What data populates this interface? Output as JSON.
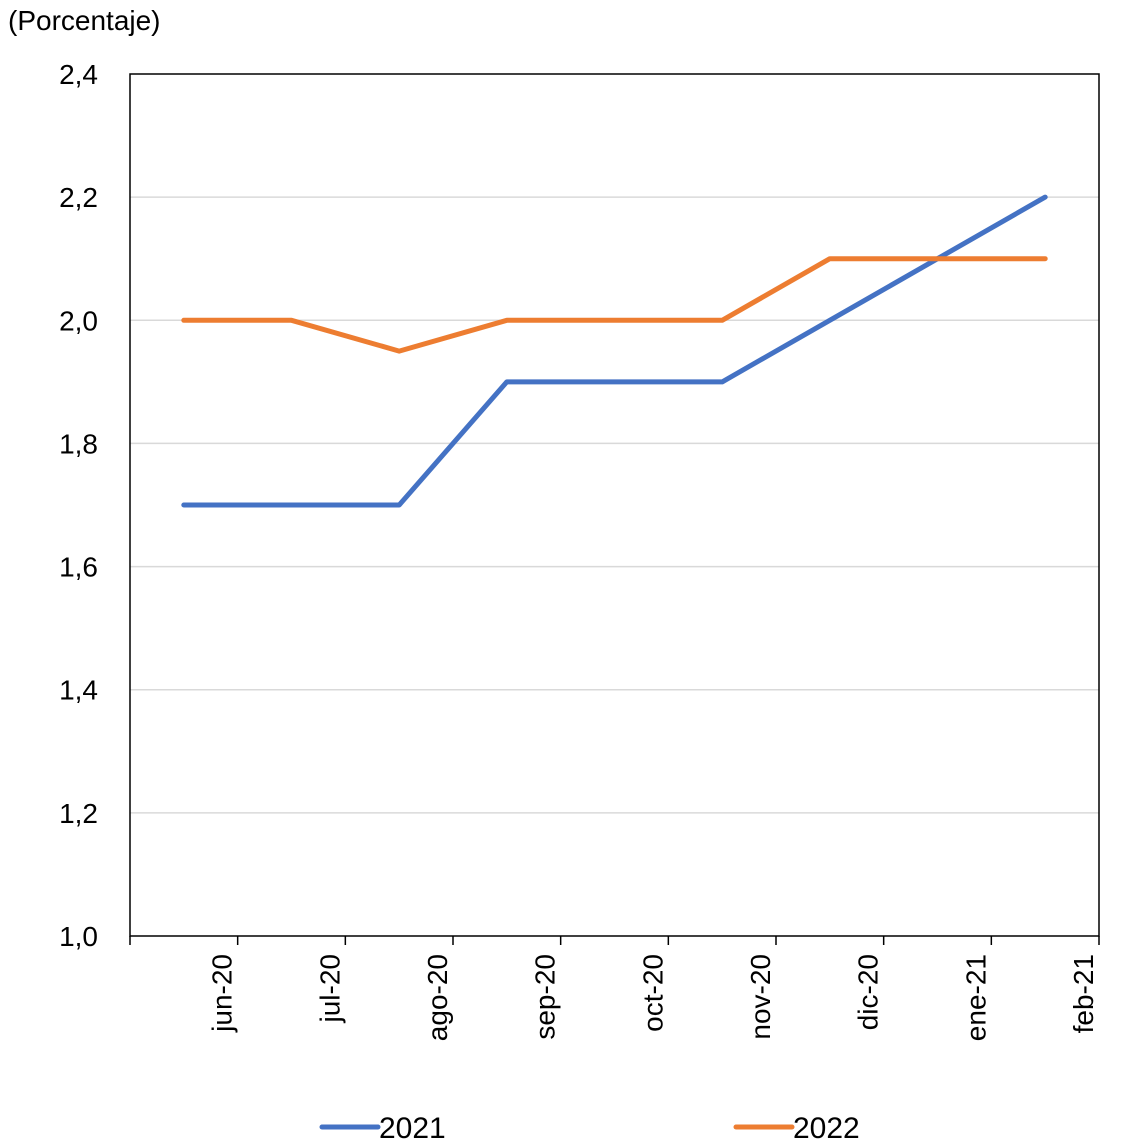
{
  "chart_data": {
    "type": "line",
    "unit_label": "(Porcentaje)",
    "categories": [
      "jun-20",
      "jul-20",
      "ago-20",
      "sep-20",
      "oct-20",
      "nov-20",
      "dic-20",
      "ene-21",
      "feb-21"
    ],
    "ylim": [
      1.0,
      2.4
    ],
    "yticks": [
      "1,0",
      "1,2",
      "1,4",
      "1,6",
      "1,8",
      "2,0",
      "2,2",
      "2,4"
    ],
    "grid": true,
    "legend_position": "bottom",
    "series": [
      {
        "name": "2021",
        "color": "#4472C4",
        "values": [
          1.7,
          1.7,
          1.7,
          1.9,
          1.9,
          1.9,
          2.0,
          2.1,
          2.2
        ]
      },
      {
        "name": "2022",
        "color": "#ED7D31",
        "values": [
          2.0,
          2.0,
          1.95,
          2.0,
          2.0,
          2.0,
          2.1,
          2.1,
          2.1
        ]
      }
    ]
  }
}
